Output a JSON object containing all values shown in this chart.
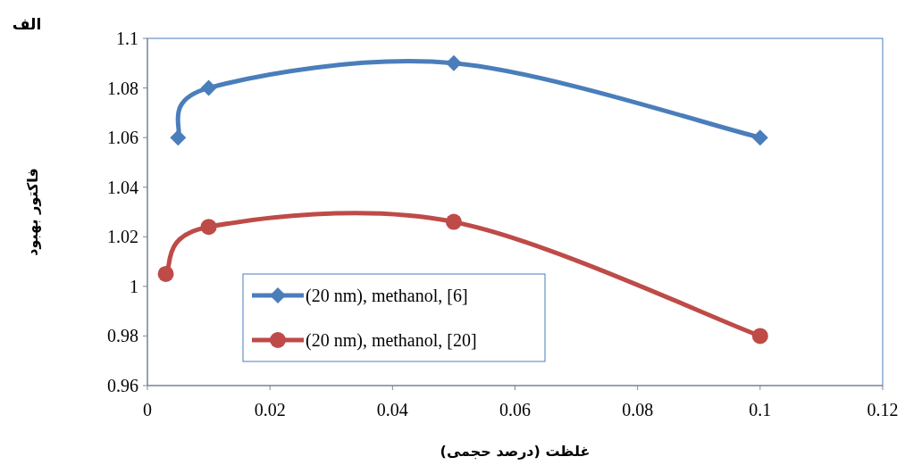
{
  "chart_data": {
    "type": "line",
    "title": "الف",
    "xlabel": "غلظت (درصد حجمی)",
    "ylabel": "فاکتور بهبود",
    "series": [
      {
        "name": "(20 nm), methanol, [6]",
        "color": "#4a7ebb",
        "marker": "diamond",
        "x": [
          0.005,
          0.01,
          0.05,
          0.1
        ],
        "values": [
          1.06,
          1.08,
          1.09,
          1.06
        ]
      },
      {
        "name": "(20 nm), methanol, [20]",
        "color": "#be4b48",
        "marker": "circle",
        "x": [
          0.003,
          0.01,
          0.05,
          0.1
        ],
        "values": [
          1.005,
          1.024,
          1.026,
          0.98
        ]
      }
    ],
    "xlim": [
      0,
      0.12
    ],
    "ylim": [
      0.96,
      1.1
    ],
    "xticks": [
      0,
      0.02,
      0.04,
      0.06,
      0.08,
      0.1,
      0.12
    ],
    "yticks": [
      0.96,
      0.98,
      1,
      1.02,
      1.04,
      1.06,
      1.08,
      1.1
    ],
    "legend": "bottom left",
    "grid": false
  }
}
